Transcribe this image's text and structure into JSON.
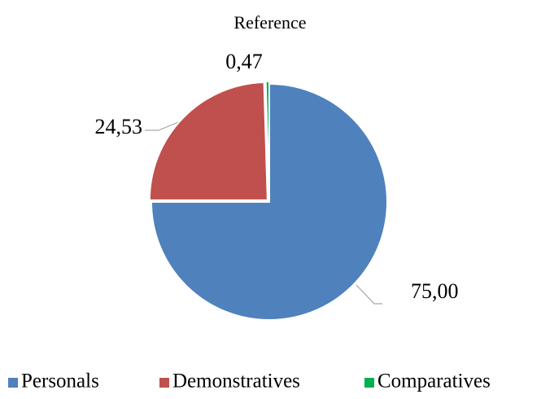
{
  "chart_data": {
    "type": "pie",
    "title": "Reference",
    "categories": [
      "Personals",
      "Demonstratives",
      "Comparatives"
    ],
    "values": [
      75.0,
      24.53,
      0.47
    ],
    "value_labels": [
      "75,00",
      "24,53",
      "0,47"
    ],
    "colors": [
      "#4f81bd",
      "#c0504d",
      "#00b050"
    ],
    "legend": "bottom"
  }
}
